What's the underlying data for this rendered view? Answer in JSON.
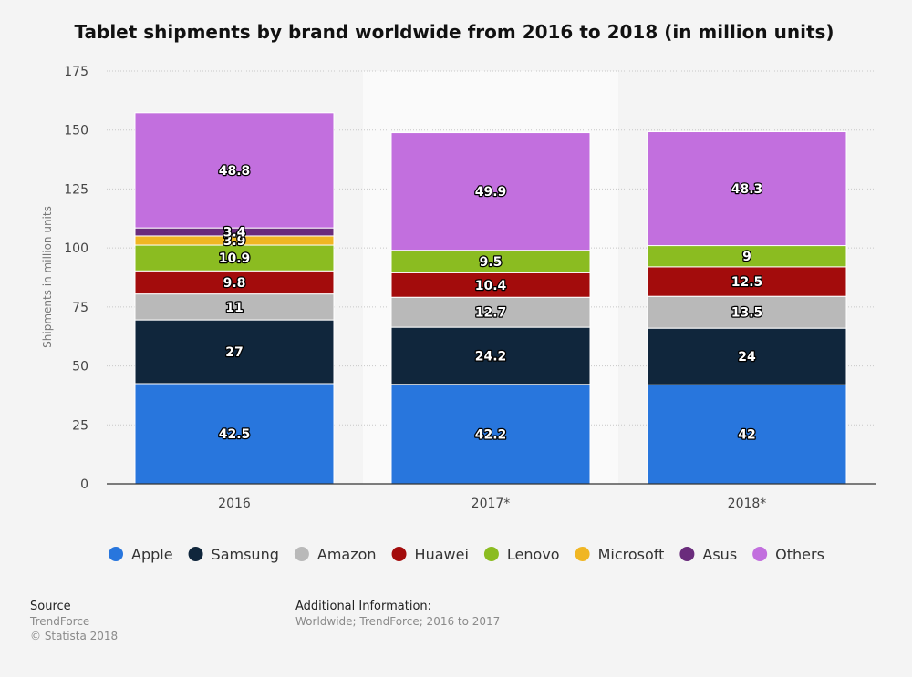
{
  "chart_data": {
    "type": "bar",
    "stacked": true,
    "title": "Tablet shipments by brand worldwide from 2016 to 2018 (in million units)",
    "xlabel": "",
    "ylabel": "Shipments in million units",
    "ylim": [
      0,
      175
    ],
    "yticks": [
      0,
      25,
      50,
      75,
      100,
      125,
      150,
      175
    ],
    "grid": true,
    "legend_position": "bottom",
    "categories": [
      "2016",
      "2017*",
      "2018*"
    ],
    "series": [
      {
        "name": "Apple",
        "color": "#2876dd",
        "values": [
          42.5,
          42.2,
          42
        ],
        "labels": [
          "42.5",
          "42.2",
          "42"
        ]
      },
      {
        "name": "Samsung",
        "color": "#10263c",
        "values": [
          27,
          24.2,
          24
        ],
        "labels": [
          "27",
          "24.2",
          "24"
        ]
      },
      {
        "name": "Amazon",
        "color": "#b9b9b9",
        "values": [
          11,
          12.7,
          13.5
        ],
        "labels": [
          "11",
          "12.7",
          "13.5"
        ]
      },
      {
        "name": "Huawei",
        "color": "#a30c0c",
        "values": [
          9.8,
          10.4,
          12.5
        ],
        "labels": [
          "9.8",
          "10.4",
          "12.5"
        ]
      },
      {
        "name": "Lenovo",
        "color": "#8bbc21",
        "values": [
          10.9,
          9.5,
          9
        ],
        "labels": [
          "10.9",
          "9.5",
          "9"
        ]
      },
      {
        "name": "Microsoft",
        "color": "#f0b623",
        "values": [
          3.9,
          null,
          null
        ],
        "labels": [
          "3.9",
          null,
          null
        ]
      },
      {
        "name": "Asus",
        "color": "#6a2c7c",
        "values": [
          3.4,
          null,
          null
        ],
        "labels": [
          "3.4",
          null,
          null
        ]
      },
      {
        "name": "Others",
        "color": "#c26fde",
        "values": [
          48.8,
          49.9,
          48.3
        ],
        "labels": [
          "48.8",
          "49.9",
          "48.3"
        ]
      }
    ]
  },
  "footer": {
    "source_heading": "Source",
    "source_name": "TrendForce",
    "copyright": "© Statista 2018",
    "info_heading": "Additional Information:",
    "info_text": "Worldwide; TrendForce; 2016 to 2017"
  }
}
